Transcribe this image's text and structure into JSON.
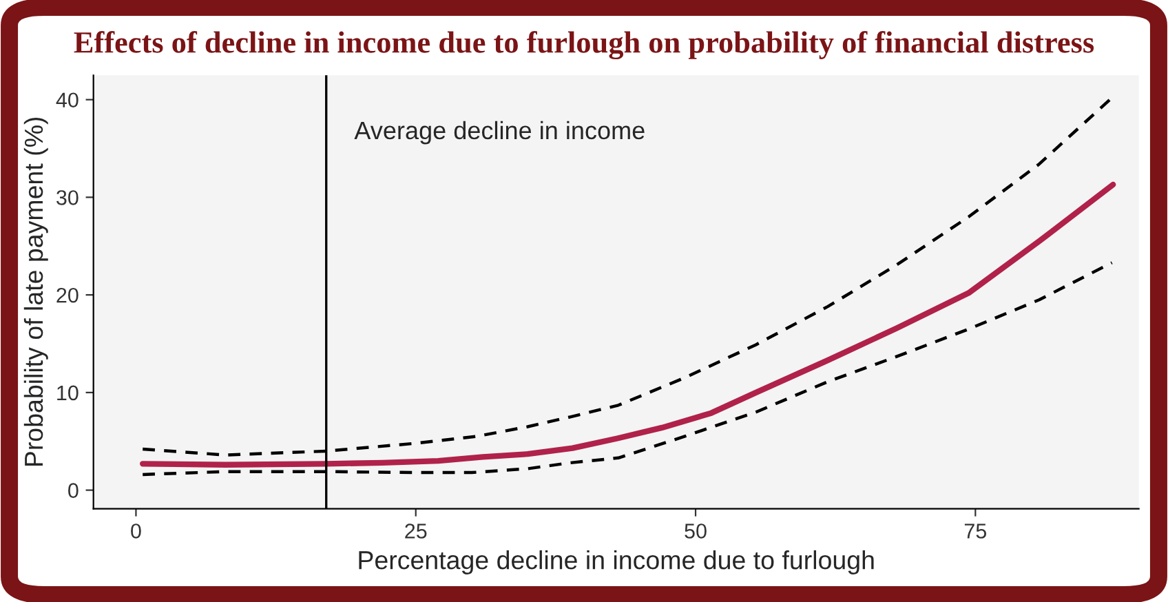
{
  "chart_data": {
    "type": "line",
    "title": "Effects of decline in income due to furlough on probability of financial distress",
    "xlabel": "Percentage decline in income due to furlough",
    "ylabel": "Probability of late payment (%)",
    "xlim": [
      -3.8,
      89.6
    ],
    "xticks": [
      0,
      25,
      50,
      75
    ],
    "ylim": [
      -1.9,
      42.5
    ],
    "yticks": [
      0,
      10,
      20,
      30,
      40
    ],
    "grid": false,
    "legend": false,
    "series": [
      {
        "color": "#b0224a",
        "line_style": "solid",
        "x": [
          0.6,
          8,
          17,
          22,
          27,
          31,
          35,
          39,
          43,
          47,
          51.4,
          55.4,
          61.8,
          68,
          74.4,
          80.7,
          87.3
        ],
        "values": [
          2.7,
          2.6,
          2.7,
          2.8,
          3.0,
          3.4,
          3.7,
          4.3,
          5.3,
          6.4,
          7.9,
          10.0,
          13.3,
          16.6,
          20.2,
          25.5,
          31.3
        ]
      },
      {
        "color": "#000000",
        "line_style": "dashed",
        "x": [
          0.6,
          8,
          17,
          25,
          30.4,
          35,
          38.8,
          43.1,
          49,
          55.4,
          61.8,
          68,
          74.4,
          80.7,
          87.2
        ],
        "values": [
          4.2,
          3.6,
          4.0,
          4.8,
          5.5,
          6.5,
          7.5,
          8.7,
          11.5,
          14.9,
          18.8,
          23.1,
          28.0,
          33.4,
          40.2
        ]
      },
      {
        "color": "#000000",
        "line_style": "dashed",
        "x": [
          0.6,
          8,
          17,
          25,
          30,
          35,
          38.8,
          43.1,
          49,
          55.4,
          61.8,
          68,
          74.4,
          80.7,
          87.2
        ],
        "values": [
          1.6,
          1.9,
          1.9,
          1.8,
          1.8,
          2.2,
          2.8,
          3.3,
          5.5,
          8.0,
          11.1,
          13.7,
          16.5,
          19.5,
          23.3
        ]
      }
    ],
    "ref_lines": [
      {
        "axis": "x",
        "value": 17.0,
        "label": "Average decline in income",
        "color": "#000000",
        "line_style": "solid"
      }
    ]
  }
}
